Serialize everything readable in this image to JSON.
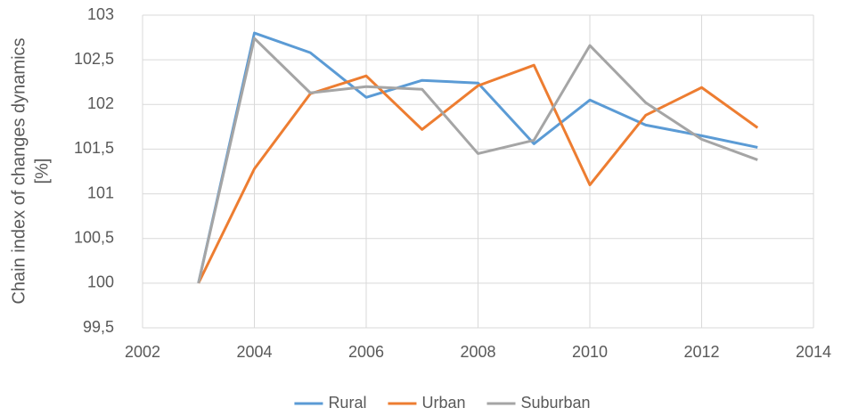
{
  "chart_data": {
    "type": "line",
    "y_label": [
      "Chain index of changes dynamics",
      "[%]"
    ],
    "x": [
      2003,
      2004,
      2005,
      2006,
      2007,
      2008,
      2009,
      2010,
      2011,
      2012,
      2013
    ],
    "series": [
      {
        "name": "Rural",
        "color": "#5b9bd5",
        "values": [
          100,
          102.8,
          102.58,
          102.08,
          102.27,
          102.24,
          101.56,
          102.05,
          101.77,
          101.65,
          101.52
        ]
      },
      {
        "name": "Urban",
        "color": "#ed7d31",
        "values": [
          100,
          101.28,
          102.12,
          102.32,
          101.72,
          102.21,
          102.44,
          101.1,
          101.88,
          102.19,
          101.74
        ]
      },
      {
        "name": "Suburban",
        "color": "#a5a5a5",
        "values": [
          100,
          102.74,
          102.13,
          102.2,
          102.17,
          101.45,
          101.6,
          102.66,
          102.02,
          101.61,
          101.38
        ]
      }
    ],
    "xlim": [
      2002,
      2014
    ],
    "xticks": [
      2002,
      2004,
      2006,
      2008,
      2010,
      2012,
      2014
    ],
    "ylim": [
      99.5,
      103
    ],
    "yticks": [
      {
        "value": 99.5,
        "label": "99,5"
      },
      100,
      {
        "value": 100.5,
        "label": "100,5"
      },
      101,
      {
        "value": 101.5,
        "label": "101,5"
      },
      102,
      {
        "value": 102.5,
        "label": "102,5"
      },
      103
    ],
    "grid": true,
    "legend": "bottom"
  }
}
